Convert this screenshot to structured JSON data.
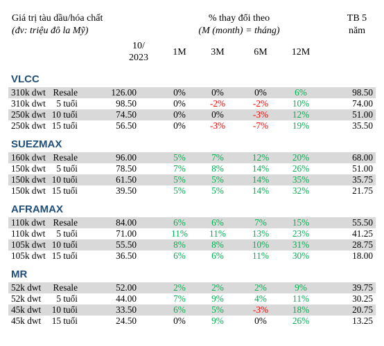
{
  "header": {
    "title_line1": "Giá trị tàu dầu/hóa chất",
    "title_line2": "(đv: triệu đô la Mỹ)",
    "change_line1": "% thay đổi theo",
    "change_line2": "(M (month) = tháng)",
    "avg_line1": "TB 5",
    "avg_line2": "năm",
    "col_date_line1": "10/",
    "col_date_line2": "2023",
    "col_1m": "1M",
    "col_3m": "3M",
    "col_6m": "6M",
    "col_12m": "12M"
  },
  "sections": [
    {
      "name": "VLCC",
      "rows": [
        {
          "size": "310k dwt",
          "age": "Resale",
          "price": "126.00",
          "m1": "0%",
          "m3": "0%",
          "m6": "0%",
          "m12": "6%",
          "avg": "98.50"
        },
        {
          "size": "310k dwt",
          "age": "5 tuổi",
          "price": "98.50",
          "m1": "0%",
          "m3": "-2%",
          "m6": "-2%",
          "m12": "10%",
          "avg": "74.00"
        },
        {
          "size": "250k dwt",
          "age": "10 tuổi",
          "price": "74.50",
          "m1": "0%",
          "m3": "0%",
          "m6": "-3%",
          "m12": "12%",
          "avg": "51.00"
        },
        {
          "size": "250k dwt",
          "age": "15 tuổi",
          "price": "56.50",
          "m1": "0%",
          "m3": "-3%",
          "m6": "-7%",
          "m12": "19%",
          "avg": "35.50"
        }
      ]
    },
    {
      "name": "SUEZMAX",
      "rows": [
        {
          "size": "160k dwt",
          "age": "Resale",
          "price": "96.00",
          "m1": "5%",
          "m3": "7%",
          "m6": "12%",
          "m12": "20%",
          "avg": "68.00"
        },
        {
          "size": "150k dwt",
          "age": "5 tuổi",
          "price": "78.50",
          "m1": "7%",
          "m3": "8%",
          "m6": "14%",
          "m12": "26%",
          "avg": "51.00"
        },
        {
          "size": "150k dwt",
          "age": "10 tuổi",
          "price": "61.50",
          "m1": "5%",
          "m3": "5%",
          "m6": "14%",
          "m12": "35%",
          "avg": "35.75"
        },
        {
          "size": "150k dwt",
          "age": "15 tuổi",
          "price": "39.50",
          "m1": "5%",
          "m3": "5%",
          "m6": "14%",
          "m12": "32%",
          "avg": "21.75"
        }
      ]
    },
    {
      "name": "AFRAMAX",
      "rows": [
        {
          "size": "110k dwt",
          "age": "Resale",
          "price": "84.00",
          "m1": "6%",
          "m3": "6%",
          "m6": "7%",
          "m12": "15%",
          "avg": "55.50"
        },
        {
          "size": "110k dwt",
          "age": "5 tuổi",
          "price": "71.00",
          "m1": "11%",
          "m3": "11%",
          "m6": "13%",
          "m12": "23%",
          "avg": "41.25"
        },
        {
          "size": "105k dwt",
          "age": "10 tuổi",
          "price": "55.50",
          "m1": "8%",
          "m3": "8%",
          "m6": "10%",
          "m12": "31%",
          "avg": "28.75"
        },
        {
          "size": "105k dwt",
          "age": "15 tuổi",
          "price": "36.50",
          "m1": "6%",
          "m3": "6%",
          "m6": "11%",
          "m12": "30%",
          "avg": "18.00"
        }
      ]
    },
    {
      "name": "MR",
      "rows": [
        {
          "size": "52k dwt",
          "age": "Resale",
          "price": "52.00",
          "m1": "2%",
          "m3": "2%",
          "m6": "2%",
          "m12": "9%",
          "avg": "39.75"
        },
        {
          "size": "52k dwt",
          "age": "5 tuổi",
          "price": "44.00",
          "m1": "7%",
          "m3": "9%",
          "m6": "4%",
          "m12": "11%",
          "avg": "30.25"
        },
        {
          "size": "45k dwt",
          "age": "10 tuổi",
          "price": "33.50",
          "m1": "6%",
          "m3": "5%",
          "m6": "-3%",
          "m12": "18%",
          "avg": "20.75"
        },
        {
          "size": "45k dwt",
          "age": "15 tuổi",
          "price": "24.50",
          "m1": "0%",
          "m3": "9%",
          "m6": "0%",
          "m12": "26%",
          "avg": "13.25"
        }
      ]
    }
  ],
  "colors": {
    "positive": "#00b050",
    "negative": "#ff0000",
    "neutral": "#000000",
    "section_title": "#1f4e79",
    "row_shade": "#d9d9d9"
  }
}
